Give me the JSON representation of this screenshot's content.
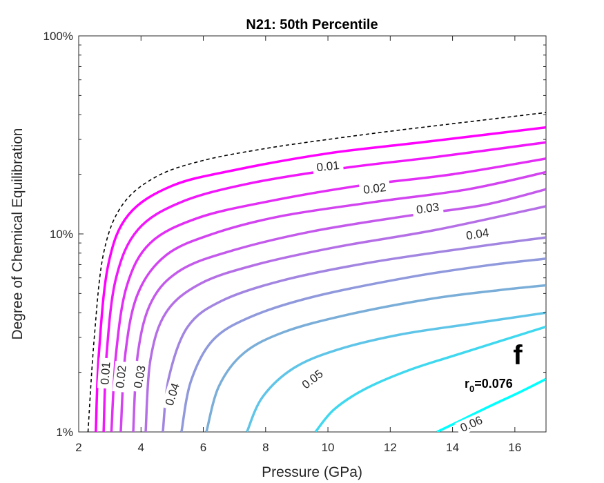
{
  "chart_data": {
    "type": "line",
    "title": "N21: 50th Percentile",
    "xlabel": "Pressure (GPa)",
    "ylabel": "Degree of Chemical Equilibration",
    "xlim": [
      2,
      17
    ],
    "ylim": [
      1,
      100
    ],
    "yscale": "log",
    "x_ticks": [
      "2",
      "4",
      "6",
      "8",
      "10",
      "12",
      "14",
      "16"
    ],
    "y_ticks": [
      "1%",
      "10%",
      "100%"
    ],
    "grid": false,
    "annotations": {
      "panel": "f",
      "r0_label": "r",
      "r0_sub": "0",
      "r0_value": "=0.076"
    },
    "boundary": {
      "name": "",
      "style": "dashed",
      "color": "#000000",
      "points": [
        [
          2.3,
          1.0
        ],
        [
          2.5,
          3.0
        ],
        [
          2.8,
          8.0
        ],
        [
          3.4,
          14.0
        ],
        [
          4.5,
          19.5
        ],
        [
          6,
          23.5
        ],
        [
          8,
          27.0
        ],
        [
          10,
          30.0
        ],
        [
          12,
          33.0
        ],
        [
          14,
          36.0
        ],
        [
          17,
          41.0
        ]
      ]
    },
    "series": [
      {
        "name": "0.01",
        "color": "#ff00ff",
        "label": "0.01",
        "label_pos": [
          10,
          22.0
        ],
        "label_pos_v": [
          2.85,
          1.98
        ],
        "points": [
          [
            2.55,
            1.0
          ],
          [
            2.65,
            2.5
          ],
          [
            2.95,
            7.0
          ],
          [
            3.6,
            12.5
          ],
          [
            5,
            17.5
          ],
          [
            7,
            21.0
          ],
          [
            10,
            25.5
          ],
          [
            13,
            29.0
          ],
          [
            17,
            34.5
          ]
        ]
      },
      {
        "name": "",
        "color": "#f017fa",
        "label": "",
        "points": [
          [
            2.8,
            1.0
          ],
          [
            2.9,
            2.5
          ],
          [
            3.2,
            6.0
          ],
          [
            3.9,
            10.5
          ],
          [
            5.3,
            14.5
          ],
          [
            7.5,
            18.0
          ],
          [
            10.5,
            21.5
          ],
          [
            13.5,
            24.5
          ],
          [
            17,
            29.0
          ]
        ]
      },
      {
        "name": "0.02",
        "color": "#e22ef5",
        "label": "0.02",
        "label_pos": [
          11.5,
          17.0
        ],
        "label_pos_v": [
          3.35,
          1.9
        ],
        "points": [
          [
            3.05,
            1.0
          ],
          [
            3.2,
            2.5
          ],
          [
            3.55,
            5.5
          ],
          [
            4.3,
            9.0
          ],
          [
            5.8,
            12.0
          ],
          [
            8,
            14.5
          ],
          [
            11,
            17.5
          ],
          [
            14,
            20.0
          ],
          [
            17,
            24.0
          ]
        ]
      },
      {
        "name": "",
        "color": "#d244f0",
        "label": "",
        "points": [
          [
            3.35,
            1.0
          ],
          [
            3.5,
            2.5
          ],
          [
            3.9,
            5.0
          ],
          [
            4.8,
            7.8
          ],
          [
            6.3,
            10.0
          ],
          [
            8.5,
            12.3
          ],
          [
            11.5,
            14.5
          ],
          [
            14.5,
            16.8
          ],
          [
            17,
            20.5
          ]
        ]
      },
      {
        "name": "0.03",
        "color": "#c45aeb",
        "label": "0.03",
        "label_pos": [
          13.2,
          13.5
        ],
        "label_pos_v": [
          3.95,
          1.9
        ],
        "points": [
          [
            3.75,
            1.0
          ],
          [
            3.9,
            2.5
          ],
          [
            4.35,
            4.6
          ],
          [
            5.3,
            6.6
          ],
          [
            7,
            8.3
          ],
          [
            9.5,
            10.3
          ],
          [
            12.5,
            12.3
          ],
          [
            15,
            14.0
          ],
          [
            17,
            16.8
          ]
        ]
      },
      {
        "name": "",
        "color": "#b56fe6",
        "label": "",
        "points": [
          [
            4.15,
            1.0
          ],
          [
            4.3,
            2.3
          ],
          [
            4.8,
            4.0
          ],
          [
            5.9,
            5.6
          ],
          [
            7.7,
            7.0
          ],
          [
            10.3,
            8.6
          ],
          [
            13.5,
            10.5
          ],
          [
            17,
            13.8
          ]
        ]
      },
      {
        "name": "0.04",
        "color": "#a285e1",
        "label": "0.04",
        "label_pos": [
          14.8,
          10.0
        ],
        "label_pos_v": [
          5.0,
          1.55
        ],
        "points": [
          [
            4.7,
            1.0
          ],
          [
            4.9,
            1.9
          ],
          [
            5.5,
            3.4
          ],
          [
            6.6,
            4.6
          ],
          [
            8.5,
            5.8
          ],
          [
            11.2,
            7.1
          ],
          [
            14.5,
            8.5
          ],
          [
            17,
            9.6
          ]
        ]
      },
      {
        "name": "",
        "color": "#8f99dc",
        "label": "",
        "points": [
          [
            5.3,
            1.0
          ],
          [
            5.6,
            1.8
          ],
          [
            6.3,
            2.9
          ],
          [
            7.5,
            3.8
          ],
          [
            9.5,
            4.8
          ],
          [
            12.5,
            6.0
          ],
          [
            15,
            6.9
          ],
          [
            17,
            7.5
          ]
        ]
      },
      {
        "name": "0.05",
        "color": "#7aaed8",
        "label": "0.05",
        "label_pos": [
          9.5,
          1.85
        ],
        "points": [
          [
            6.1,
            1.0
          ],
          [
            6.5,
            1.7
          ],
          [
            7.3,
            2.5
          ],
          [
            8.6,
            3.2
          ],
          [
            10.6,
            3.9
          ],
          [
            13.3,
            4.7
          ],
          [
            15.5,
            5.2
          ],
          [
            17,
            5.5
          ]
        ]
      },
      {
        "name": "",
        "color": "#5fc5e8",
        "label": "",
        "points": [
          [
            7.4,
            1.0
          ],
          [
            7.9,
            1.5
          ],
          [
            8.9,
            2.1
          ],
          [
            10.3,
            2.6
          ],
          [
            12.3,
            3.1
          ],
          [
            14.5,
            3.5
          ],
          [
            17,
            4.0
          ]
        ]
      },
      {
        "name": "",
        "color": "#3fd8ef",
        "label": "",
        "points": [
          [
            9.6,
            1.0
          ],
          [
            10.2,
            1.3
          ],
          [
            11.2,
            1.65
          ],
          [
            12.6,
            2.05
          ],
          [
            14.3,
            2.5
          ],
          [
            17,
            3.4
          ]
        ]
      },
      {
        "name": "0.06",
        "color": "#00ffff",
        "label": "0.06",
        "label_pos": [
          14.6,
          1.1
        ],
        "points": [
          [
            13.5,
            1.0
          ],
          [
            14.2,
            1.13
          ],
          [
            15.2,
            1.35
          ],
          [
            16.2,
            1.6
          ],
          [
            17,
            1.85
          ]
        ]
      }
    ]
  }
}
